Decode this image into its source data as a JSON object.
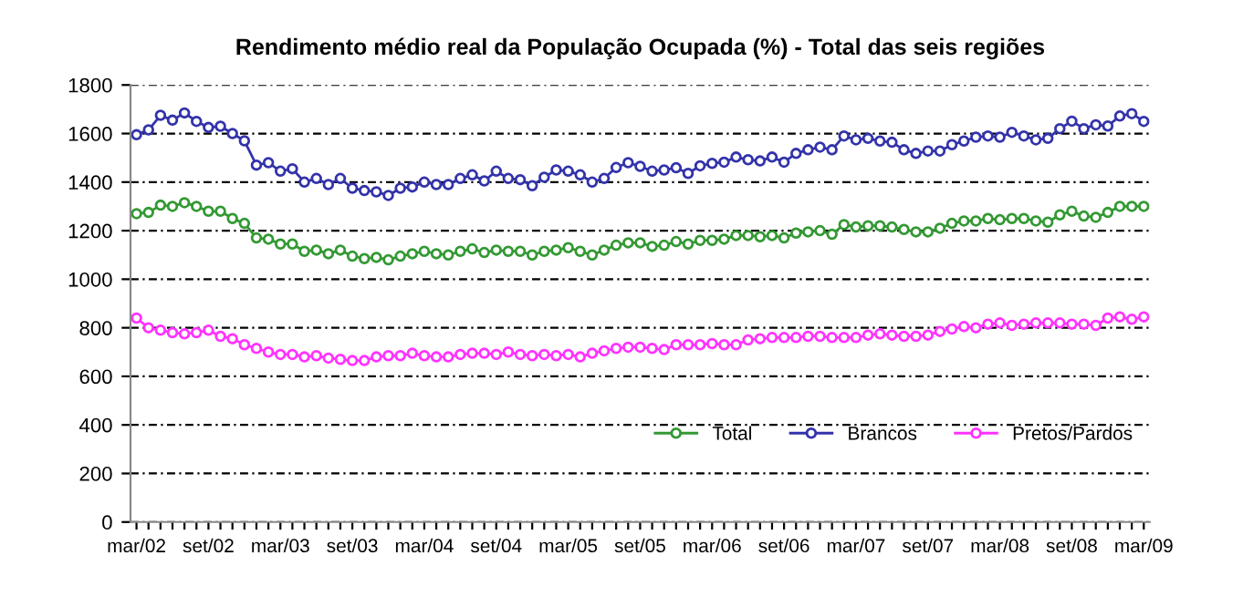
{
  "chart_data": {
    "type": "line",
    "title": "Rendimento médio real da População Ocupada (%) - Total das seis regiões",
    "categories": [
      "mar/02",
      null,
      null,
      null,
      null,
      null,
      "set/02",
      null,
      null,
      null,
      null,
      null,
      "mar/03",
      null,
      null,
      null,
      null,
      null,
      "set/03",
      null,
      null,
      null,
      null,
      null,
      "mar/04",
      null,
      null,
      null,
      null,
      null,
      "set/04",
      null,
      null,
      null,
      null,
      null,
      "mar/05",
      null,
      null,
      null,
      null,
      null,
      "set/05",
      null,
      null,
      null,
      null,
      null,
      "mar/06",
      null,
      null,
      null,
      null,
      null,
      "set/06",
      null,
      null,
      null,
      null,
      null,
      "mar/07",
      null,
      null,
      null,
      null,
      null,
      "set/07",
      null,
      null,
      null,
      null,
      null,
      "mar/08",
      null,
      null,
      null,
      null,
      null,
      "set/08",
      null,
      null,
      null,
      null,
      null,
      "mar/09"
    ],
    "series": [
      {
        "name": "Total",
        "color": "#339933",
        "values": [
          1270,
          1275,
          1305,
          1300,
          1315,
          1300,
          1280,
          1280,
          1250,
          1230,
          1170,
          1165,
          1145,
          1145,
          1115,
          1120,
          1105,
          1120,
          1095,
          1085,
          1090,
          1080,
          1095,
          1105,
          1115,
          1105,
          1100,
          1115,
          1125,
          1110,
          1120,
          1115,
          1115,
          1100,
          1115,
          1120,
          1130,
          1115,
          1100,
          1120,
          1140,
          1150,
          1150,
          1135,
          1140,
          1155,
          1145,
          1160,
          1160,
          1165,
          1180,
          1180,
          1175,
          1180,
          1170,
          1190,
          1195,
          1200,
          1185,
          1225,
          1215,
          1220,
          1220,
          1215,
          1205,
          1195,
          1195,
          1210,
          1230,
          1240,
          1240,
          1250,
          1245,
          1250,
          1250,
          1240,
          1235,
          1265,
          1280,
          1260,
          1255,
          1275,
          1300,
          1300,
          1300
        ]
      },
      {
        "name": "Brancos",
        "color": "#3333aa",
        "values": [
          1595,
          1615,
          1675,
          1655,
          1685,
          1650,
          1625,
          1630,
          1600,
          1570,
          1470,
          1480,
          1445,
          1455,
          1400,
          1415,
          1390,
          1415,
          1375,
          1365,
          1360,
          1345,
          1375,
          1380,
          1400,
          1390,
          1390,
          1415,
          1430,
          1405,
          1445,
          1415,
          1410,
          1385,
          1420,
          1450,
          1445,
          1430,
          1400,
          1415,
          1460,
          1480,
          1465,
          1445,
          1450,
          1459,
          1436,
          1467,
          1477,
          1482,
          1503,
          1492,
          1487,
          1503,
          1482,
          1518,
          1533,
          1544,
          1533,
          1590,
          1574,
          1580,
          1569,
          1564,
          1533,
          1518,
          1528,
          1528,
          1554,
          1569,
          1585,
          1590,
          1585,
          1605,
          1590,
          1574,
          1580,
          1620,
          1651,
          1620,
          1636,
          1631,
          1672,
          1682,
          1650
        ]
      },
      {
        "name": "Pretos/Pardos",
        "color": "#ff33ff",
        "values": [
          840,
          800,
          790,
          780,
          775,
          780,
          790,
          765,
          755,
          730,
          715,
          700,
          690,
          690,
          680,
          685,
          675,
          670,
          665,
          665,
          680,
          685,
          685,
          695,
          685,
          680,
          680,
          690,
          695,
          695,
          690,
          700,
          690,
          685,
          690,
          685,
          690,
          680,
          695,
          705,
          715,
          720,
          720,
          715,
          710,
          730,
          730,
          730,
          735,
          730,
          730,
          750,
          755,
          760,
          760,
          760,
          765,
          765,
          760,
          760,
          760,
          770,
          775,
          770,
          765,
          765,
          770,
          785,
          795,
          805,
          800,
          815,
          820,
          810,
          815,
          820,
          820,
          820,
          815,
          815,
          810,
          840,
          845,
          835,
          845
        ]
      }
    ],
    "ylim": [
      0,
      1800
    ],
    "yticks": [
      0,
      200,
      400,
      600,
      800,
      1000,
      1200,
      1400,
      1600,
      1800
    ],
    "grid": "y",
    "legend": "bottom right",
    "marker": "circle",
    "line_style": "solid"
  }
}
